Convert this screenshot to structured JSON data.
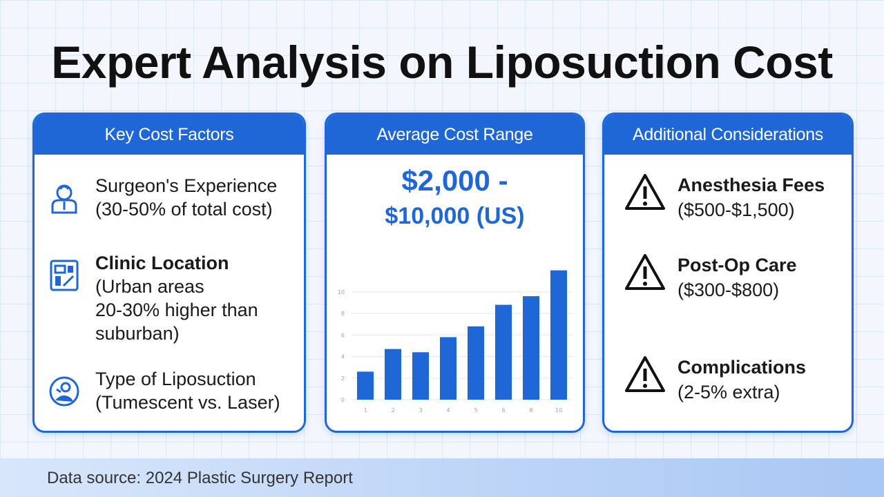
{
  "title": "Expert Analysis on Liposuction Cost",
  "cards": {
    "key_factors": {
      "header": "Key Cost Factors",
      "items": [
        {
          "icon": "surgeon-icon",
          "label": "Surgeon's Experience",
          "detail": "(30-50% of total cost)"
        },
        {
          "icon": "clinic-location-icon",
          "label": "Clinic Location",
          "detail_lines": [
            "(Urban areas",
            "20-30% higher than",
            "suburban)"
          ]
        },
        {
          "icon": "procedure-type-icon",
          "label": "Type of Liposuction",
          "detail": "(Tumescent vs. Laser)"
        }
      ]
    },
    "average_cost": {
      "header": "Average Cost Range",
      "price_line1": "$2,000 -",
      "price_line2": "$10,000 (US)"
    },
    "additional": {
      "header": "Additional Considerations",
      "items": [
        {
          "icon": "warning-icon",
          "label": "Anesthesia Fees",
          "detail": "($500-$1,500)"
        },
        {
          "icon": "warning-icon",
          "label": "Post-Op Care",
          "detail": "($300-$800)"
        },
        {
          "icon": "warning-icon",
          "label": "Complications",
          "detail": "(2-5% extra)"
        }
      ]
    }
  },
  "chart_data": {
    "type": "bar",
    "categories": [
      "1",
      "2",
      "3",
      "4",
      "5",
      "6",
      "8",
      "10"
    ],
    "values": [
      2.6,
      4.7,
      4.4,
      5.8,
      6.8,
      8.8,
      9.6,
      12.0
    ],
    "y_ticks": [
      "0",
      "2",
      "4",
      "6",
      "8",
      "10"
    ],
    "ylim": [
      0,
      13
    ],
    "grid": true,
    "color": "#1f66d6"
  },
  "footer": "Data source: 2024 Plastic Surgery Report",
  "colors": {
    "accent": "#1f66d6",
    "background": "#f3f7fd"
  }
}
